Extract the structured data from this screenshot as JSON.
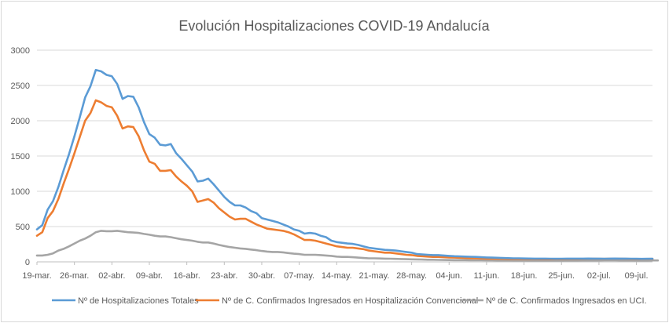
{
  "chart_data": {
    "type": "line",
    "title": "Evolución Hospitalizaciones COVID-19 Andalucía",
    "xlabel": "",
    "ylabel": "",
    "ylim": [
      0,
      3000
    ],
    "yticks": [
      "0",
      "500",
      "1000",
      "1500",
      "2000",
      "2500",
      "3000"
    ],
    "grid": "horizontal",
    "legend_position": "bottom",
    "x_tick_labels": [
      "19-mar.",
      "26-mar.",
      "02-abr.",
      "09-abr.",
      "16-abr.",
      "23-abr.",
      "30-abr.",
      "07-may.",
      "14-may.",
      "21-may.",
      "28-may.",
      "04-jun.",
      "11-jun.",
      "18-jun.",
      "25-jun.",
      "02-jul.",
      "09-jul."
    ],
    "x_start": "19-mar.",
    "x_end": "12-jul.",
    "series": [
      {
        "name": "Nº de Hospitalizaciones Totales",
        "color": "#5b9bd5",
        "values": [
          460,
          520,
          740,
          860,
          1060,
          1300,
          1530,
          1780,
          2050,
          2330,
          2490,
          2720,
          2700,
          2650,
          2630,
          2520,
          2310,
          2350,
          2340,
          2190,
          1980,
          1810,
          1760,
          1660,
          1650,
          1670,
          1540,
          1460,
          1370,
          1280,
          1140,
          1150,
          1180,
          1100,
          1010,
          920,
          850,
          800,
          800,
          770,
          720,
          690,
          620,
          600,
          580,
          560,
          530,
          500,
          460,
          440,
          400,
          410,
          400,
          370,
          350,
          300,
          280,
          270,
          260,
          255,
          240,
          220,
          200,
          190,
          180,
          170,
          165,
          160,
          150,
          140,
          130,
          110,
          105,
          100,
          95,
          95,
          90,
          85,
          80,
          78,
          75,
          72,
          70,
          65,
          62,
          60,
          58,
          55,
          52,
          50,
          50,
          48,
          47,
          46,
          45,
          45,
          44,
          43,
          44,
          45,
          46,
          45,
          46,
          47,
          46,
          45,
          44,
          46,
          47,
          46,
          45,
          44,
          43,
          42,
          43,
          44
        ]
      },
      {
        "name": "Nº de C. Confirmados Ingresados en Hospitalización Convencional",
        "color": "#ed7d31",
        "values": [
          370,
          420,
          620,
          720,
          890,
          1110,
          1320,
          1540,
          1770,
          2000,
          2110,
          2290,
          2260,
          2210,
          2190,
          2070,
          1890,
          1920,
          1910,
          1780,
          1580,
          1420,
          1390,
          1290,
          1290,
          1300,
          1210,
          1140,
          1080,
          1000,
          850,
          870,
          890,
          840,
          760,
          700,
          640,
          600,
          610,
          610,
          570,
          530,
          500,
          470,
          460,
          450,
          440,
          420,
          390,
          350,
          310,
          310,
          300,
          280,
          260,
          240,
          220,
          210,
          200,
          200,
          190,
          180,
          160,
          150,
          140,
          130,
          130,
          120,
          110,
          100,
          95,
          85,
          80,
          75,
          70,
          70,
          65,
          62,
          60,
          58,
          55,
          52,
          50,
          48,
          46,
          45,
          43,
          42,
          40,
          40,
          40,
          39,
          38,
          38,
          37,
          37,
          37,
          38,
          38,
          39,
          40,
          40,
          41,
          42,
          43,
          42,
          42,
          43,
          44,
          43,
          42,
          41,
          40,
          40,
          41,
          42
        ]
      },
      {
        "name": "Nº de C. Confirmados Ingresados en UCI.",
        "color": "#a5a5a5",
        "values": [
          90,
          90,
          100,
          120,
          160,
          185,
          220,
          260,
          300,
          330,
          370,
          420,
          440,
          435,
          435,
          440,
          430,
          420,
          415,
          410,
          395,
          385,
          370,
          360,
          360,
          350,
          335,
          320,
          310,
          300,
          285,
          275,
          275,
          260,
          240,
          225,
          210,
          200,
          190,
          185,
          175,
          165,
          155,
          145,
          140,
          140,
          135,
          125,
          115,
          110,
          100,
          100,
          100,
          95,
          90,
          85,
          75,
          70,
          70,
          65,
          60,
          55,
          50,
          50,
          48,
          46,
          44,
          42,
          40,
          38,
          36,
          34,
          32,
          30,
          30,
          28,
          27,
          26,
          25,
          24,
          24,
          23,
          22,
          22,
          21,
          21,
          20,
          20,
          20,
          19,
          19,
          19,
          18,
          18,
          18,
          18,
          18,
          18,
          18,
          19,
          19,
          19,
          20,
          20,
          20,
          20,
          21,
          21,
          21,
          20,
          20,
          20,
          19,
          19,
          19,
          20,
          20
        ]
      }
    ]
  }
}
